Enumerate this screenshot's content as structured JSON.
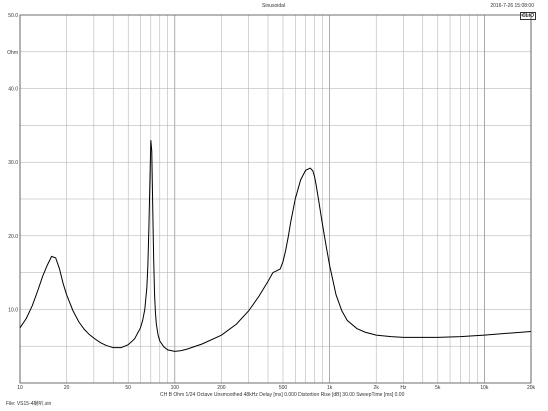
{
  "header": {
    "title": "Sinusoidal",
    "timestamp": "2016-7-26 15:08:00",
    "logo": "CLIO"
  },
  "footer": {
    "settings": "CH B  Ohm   1/24 Octave   Unsmoothed  48kHz   Delay [ms] 0.000   Distortion Rise [dB] 30.00   SweepTime [ms] 0.00",
    "file": "File: VS15-4喇叭.sin"
  },
  "chart_data": {
    "type": "line",
    "title": "",
    "xlabel": "Hz",
    "ylabel": "Ohm",
    "x_scale": "log",
    "xlim": [
      10,
      20000
    ],
    "ylim": [
      0,
      50
    ],
    "grid": true,
    "x_tick_labels": [
      {
        "value": 10,
        "label": "10"
      },
      {
        "value": 20,
        "label": "20"
      },
      {
        "value": 50,
        "label": "50"
      },
      {
        "value": 100,
        "label": "100"
      },
      {
        "value": 200,
        "label": "200"
      },
      {
        "value": 500,
        "label": "500"
      },
      {
        "value": 1000,
        "label": "1k"
      },
      {
        "value": 2000,
        "label": "2k"
      },
      {
        "value": 3000,
        "label": "Hz"
      },
      {
        "value": 5000,
        "label": "5k"
      },
      {
        "value": 10000,
        "label": "10k"
      },
      {
        "value": 20000,
        "label": "20k"
      }
    ],
    "y_tick_labels": [
      {
        "value": 50,
        "label": "50.0"
      },
      {
        "value": 45,
        "label": "Ohm"
      },
      {
        "value": 40,
        "label": "40.0"
      },
      {
        "value": 30,
        "label": "30.0"
      },
      {
        "value": 20,
        "label": "20.0"
      },
      {
        "value": 10,
        "label": "10.0"
      }
    ],
    "series": [
      {
        "color": "#000000",
        "x": [
          10,
          11,
          12,
          13,
          14,
          15,
          16,
          17,
          18,
          19,
          20,
          22,
          24,
          26,
          28,
          30,
          33,
          36,
          40,
          45,
          50,
          55,
          60,
          62,
          64,
          66,
          67,
          68,
          69,
          70,
          71,
          72,
          73,
          74,
          75,
          76,
          78,
          80,
          85,
          90,
          100,
          110,
          120,
          150,
          200,
          250,
          300,
          350,
          400,
          430,
          460,
          480,
          500,
          520,
          540,
          560,
          600,
          650,
          700,
          750,
          780,
          800,
          820,
          850,
          900,
          950,
          1000,
          1100,
          1200,
          1300,
          1500,
          1700,
          2000,
          2500,
          3000,
          4000,
          5000,
          7000,
          10000,
          15000,
          20000
        ],
        "y": [
          7.5,
          8.8,
          10.5,
          12.5,
          14.5,
          16.0,
          17.2,
          17.0,
          15.5,
          13.5,
          12.0,
          9.8,
          8.3,
          7.3,
          6.6,
          6.1,
          5.5,
          5.1,
          4.8,
          4.8,
          5.2,
          6.0,
          7.5,
          8.5,
          10.0,
          13.0,
          16.0,
          21.0,
          27.0,
          33.0,
          31.5,
          24.0,
          17.0,
          12.0,
          9.5,
          8.0,
          6.5,
          5.7,
          4.9,
          4.5,
          4.3,
          4.4,
          4.6,
          5.3,
          6.5,
          8.0,
          9.8,
          11.8,
          13.8,
          15.0,
          15.3,
          15.5,
          16.5,
          18.0,
          19.8,
          21.8,
          25.0,
          27.6,
          28.9,
          29.2,
          28.8,
          28.0,
          26.8,
          24.8,
          21.5,
          18.6,
          16.0,
          12.0,
          9.8,
          8.5,
          7.4,
          6.9,
          6.5,
          6.3,
          6.2,
          6.2,
          6.2,
          6.3,
          6.5,
          6.8,
          7.0
        ]
      }
    ]
  }
}
